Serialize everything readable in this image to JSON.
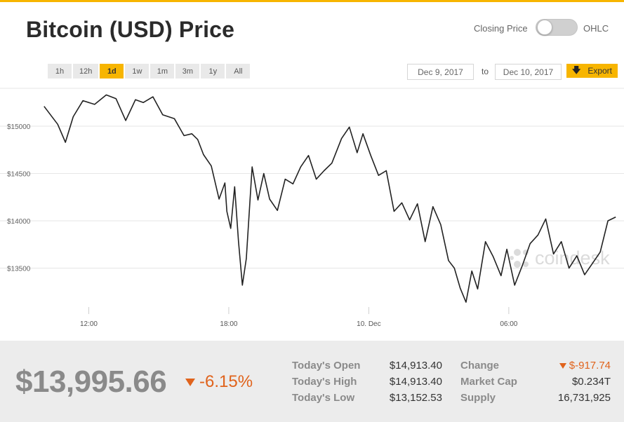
{
  "title": "Bitcoin (USD) Price",
  "mode_toggle": {
    "left_label": "Closing Price",
    "right_label": "OHLC",
    "state": "closing-price"
  },
  "ranges": [
    "1h",
    "12h",
    "1d",
    "1w",
    "1m",
    "3m",
    "1y",
    "All"
  ],
  "active_range": "1d",
  "date_range": {
    "from": "Dec 9, 2017",
    "separator": "to",
    "to": "Dec 10, 2017"
  },
  "export_label": "Export",
  "watermark": "coindesk",
  "colors": {
    "accent": "#f7b500",
    "negative": "#e0631c",
    "line": "#222222"
  },
  "chart_data": {
    "type": "line",
    "ylim": [
      13000,
      15400
    ],
    "y_ticks": [
      13500,
      14000,
      14500,
      15000
    ],
    "y_tick_labels": [
      "$13500",
      "$14000",
      "$14500",
      "$15000"
    ],
    "xlim": [
      "2017-12-09T10:00",
      "2017-12-10T10:40"
    ],
    "x_ticks": [
      "2017-12-09T12:00",
      "2017-12-09T18:00",
      "2017-12-10T00:00",
      "2017-12-10T06:00"
    ],
    "x_tick_labels": [
      "12:00",
      "18:00",
      "10. Dec",
      "06:00"
    ],
    "grid": true,
    "series": [
      {
        "x": [
          "2017-12-09T10:05",
          "2017-12-09T10:40",
          "2017-12-09T11:00",
          "2017-12-09T11:20",
          "2017-12-09T11:45",
          "2017-12-09T12:15",
          "2017-12-09T12:45",
          "2017-12-09T13:10",
          "2017-12-09T13:35",
          "2017-12-09T14:00",
          "2017-12-09T14:20",
          "2017-12-09T14:45",
          "2017-12-09T15:10",
          "2017-12-09T15:40",
          "2017-12-09T16:05",
          "2017-12-09T16:25",
          "2017-12-09T16:40",
          "2017-12-09T16:55",
          "2017-12-09T17:15",
          "2017-12-09T17:35",
          "2017-12-09T17:50",
          "2017-12-09T17:55",
          "2017-12-09T18:05",
          "2017-12-09T18:15",
          "2017-12-09T18:25",
          "2017-12-09T18:35",
          "2017-12-09T18:45",
          "2017-12-09T19:00",
          "2017-12-09T19:15",
          "2017-12-09T19:30",
          "2017-12-09T19:45",
          "2017-12-09T20:05",
          "2017-12-09T20:25",
          "2017-12-09T20:45",
          "2017-12-09T21:05",
          "2017-12-09T21:25",
          "2017-12-09T21:45",
          "2017-12-09T22:05",
          "2017-12-09T22:25",
          "2017-12-09T22:50",
          "2017-12-09T23:10",
          "2017-12-09T23:30",
          "2017-12-09T23:45",
          "2017-12-10T00:05",
          "2017-12-10T00:25",
          "2017-12-10T00:45",
          "2017-12-10T01:05",
          "2017-12-10T01:25",
          "2017-12-10T01:45",
          "2017-12-10T02:05",
          "2017-12-10T02:25",
          "2017-12-10T02:45",
          "2017-12-10T03:05",
          "2017-12-10T03:25",
          "2017-12-10T03:40",
          "2017-12-10T03:55",
          "2017-12-10T04:10",
          "2017-12-10T04:25",
          "2017-12-10T04:40",
          "2017-12-10T05:00",
          "2017-12-10T05:20",
          "2017-12-10T05:40",
          "2017-12-10T05:55",
          "2017-12-10T06:15",
          "2017-12-10T06:35",
          "2017-12-10T06:55",
          "2017-12-10T07:15",
          "2017-12-10T07:35",
          "2017-12-10T07:55",
          "2017-12-10T08:15",
          "2017-12-10T08:35",
          "2017-12-10T08:55",
          "2017-12-10T09:15",
          "2017-12-10T09:35",
          "2017-12-10T09:55",
          "2017-12-10T10:15",
          "2017-12-10T10:35"
        ],
        "values": [
          15210,
          15020,
          14830,
          15100,
          15270,
          15230,
          15330,
          15290,
          15060,
          15280,
          15250,
          15310,
          15120,
          15080,
          14900,
          14920,
          14860,
          14700,
          14580,
          14230,
          14400,
          14100,
          13920,
          14360,
          13780,
          13320,
          13600,
          14570,
          14220,
          14500,
          14230,
          14110,
          14440,
          14390,
          14570,
          14690,
          14440,
          14530,
          14610,
          14870,
          14990,
          14720,
          14920,
          14690,
          14480,
          14530,
          14100,
          14190,
          14010,
          14180,
          13780,
          14150,
          13960,
          13580,
          13500,
          13290,
          13140,
          13470,
          13280,
          13780,
          13620,
          13420,
          13700,
          13320,
          13530,
          13760,
          13850,
          14020,
          13650,
          13780,
          13500,
          13630,
          13430,
          13550,
          13670,
          14000,
          14040
        ]
      }
    ]
  },
  "stats": {
    "price": "$13,995.66",
    "change_pct": "-6.15%",
    "rows": [
      {
        "label": "Today's Open",
        "value": "$14,913.40"
      },
      {
        "label": "Today's High",
        "value": "$14,913.40"
      },
      {
        "label": "Today's Low",
        "value": "$13,152.53"
      }
    ],
    "rows2": [
      {
        "label": "Change",
        "value": "$-917.74"
      },
      {
        "label": "Market Cap",
        "value": "$0.234T"
      },
      {
        "label": "Supply",
        "value": "16,731,925"
      }
    ]
  }
}
